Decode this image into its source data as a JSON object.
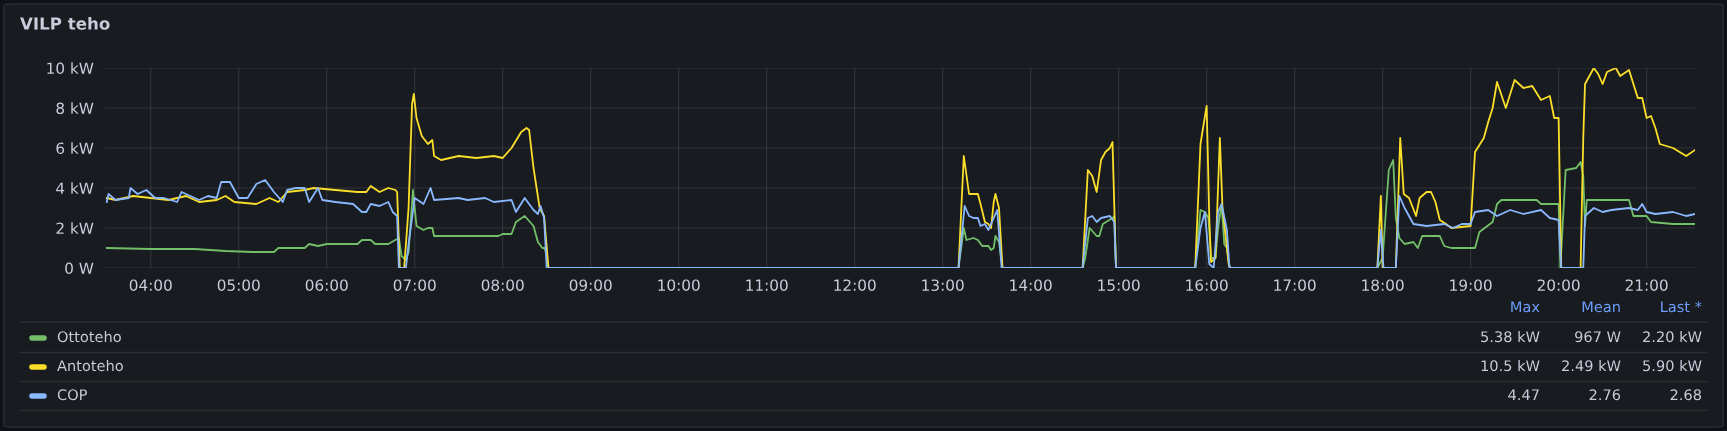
{
  "chart_data": {
    "type": "line",
    "title": "VILP teho",
    "xlim": [
      3.48,
      21.55
    ],
    "xticks": [
      {
        "value": 4,
        "label": "04:00"
      },
      {
        "value": 5,
        "label": "05:00"
      },
      {
        "value": 6,
        "label": "06:00"
      },
      {
        "value": 7,
        "label": "07:00"
      },
      {
        "value": 8,
        "label": "08:00"
      },
      {
        "value": 9,
        "label": "09:00"
      },
      {
        "value": 10,
        "label": "10:00"
      },
      {
        "value": 11,
        "label": "11:00"
      },
      {
        "value": 12,
        "label": "12:00"
      },
      {
        "value": 13,
        "label": "13:00"
      },
      {
        "value": 14,
        "label": "14:00"
      },
      {
        "value": 15,
        "label": "15:00"
      },
      {
        "value": 16,
        "label": "16:00"
      },
      {
        "value": 17,
        "label": "17:00"
      },
      {
        "value": 18,
        "label": "18:00"
      },
      {
        "value": 19,
        "label": "19:00"
      },
      {
        "value": 20,
        "label": "20:00"
      },
      {
        "value": 21,
        "label": "21:00"
      }
    ],
    "ylim": [
      0,
      10
    ],
    "yticks": [
      {
        "value": 0,
        "label": "0 W"
      },
      {
        "value": 2,
        "label": "2 kW"
      },
      {
        "value": 4,
        "label": "4 kW"
      },
      {
        "value": 6,
        "label": "6 kW"
      },
      {
        "value": 8,
        "label": "8 kW"
      },
      {
        "value": 10,
        "label": "10 kW"
      }
    ],
    "grid": true,
    "legend": "bottom",
    "marker": "none",
    "line_style": "solid",
    "annotations": [
      "Max",
      "Mean",
      "Last *",
      "5.38 kW",
      "967 W",
      "2.20 kW",
      "10.5 kW",
      "2.49 kW",
      "5.90 kW",
      "4.47",
      "2.76",
      "2.68"
    ],
    "series": [
      {
        "name": "Ottoteho",
        "color": "#73bf69",
        "x": [
          3.5,
          4.0,
          4.5,
          4.85,
          5.15,
          5.4,
          5.45,
          5.75,
          5.8,
          5.9,
          6.0,
          6.35,
          6.4,
          6.5,
          6.55,
          6.7,
          6.78,
          6.82,
          6.85,
          6.9,
          6.93,
          6.98,
          7.02,
          7.1,
          7.15,
          7.2,
          7.22,
          7.95,
          8.0,
          8.1,
          8.15,
          8.25,
          8.35,
          8.4,
          8.45,
          8.48,
          8.52,
          13.18,
          13.24,
          13.27,
          13.35,
          13.4,
          13.45,
          13.52,
          13.55,
          13.58,
          13.6,
          13.64,
          13.68,
          14.59,
          14.62,
          14.67,
          14.75,
          14.78,
          14.82,
          14.93,
          14.95,
          14.97,
          15.87,
          15.93,
          15.98,
          16.02,
          16.05,
          16.1,
          16.13,
          16.17,
          16.2,
          16.23,
          16.26,
          17.94,
          18.0,
          18.07,
          18.12,
          18.15,
          18.19,
          18.25,
          18.35,
          18.4,
          18.45,
          18.65,
          18.7,
          18.78,
          19.05,
          19.1,
          19.25,
          19.3,
          19.35,
          19.55,
          19.75,
          19.8,
          20.0,
          20.02,
          20.08,
          20.2,
          20.25,
          20.28,
          20.3,
          20.32,
          20.8,
          20.85,
          21.0,
          21.05,
          21.3,
          21.55
        ],
        "values": [
          1.0,
          0.95,
          0.95,
          0.85,
          0.8,
          0.8,
          1.0,
          1.0,
          1.2,
          1.1,
          1.2,
          1.2,
          1.4,
          1.4,
          1.2,
          1.2,
          1.4,
          1.5,
          0.6,
          0.4,
          0.8,
          3.9,
          2.1,
          1.9,
          2.0,
          2.0,
          1.6,
          1.6,
          1.7,
          1.7,
          2.3,
          2.6,
          2.1,
          1.3,
          1.0,
          1.0,
          0,
          0,
          2.0,
          1.4,
          1.5,
          1.4,
          1.1,
          1.1,
          0.9,
          1.0,
          1.6,
          1.3,
          0,
          0,
          0.5,
          2.0,
          1.6,
          1.6,
          2.2,
          2.5,
          2.6,
          0,
          0,
          2.9,
          2.8,
          2.5,
          0.5,
          0.5,
          2.0,
          3.2,
          1.2,
          1.0,
          0,
          0,
          0.5,
          4.9,
          5.4,
          2.5,
          1.5,
          1.2,
          1.3,
          1.0,
          1.6,
          1.6,
          1.1,
          1.0,
          1.0,
          1.8,
          2.3,
          3.2,
          3.4,
          3.4,
          3.4,
          3.2,
          3.2,
          0,
          4.9,
          5.0,
          5.3,
          4.6,
          2.1,
          3.4,
          3.4,
          2.6,
          2.6,
          2.3,
          2.2,
          2.2
        ]
      },
      {
        "name": "Antoteho",
        "color": "#fade2a",
        "x": [
          3.5,
          3.6,
          3.8,
          4.0,
          4.2,
          4.4,
          4.55,
          4.75,
          4.85,
          4.95,
          5.2,
          5.35,
          5.45,
          5.55,
          5.75,
          5.85,
          6.1,
          6.35,
          6.45,
          6.5,
          6.6,
          6.7,
          6.78,
          6.8,
          6.83,
          6.88,
          6.93,
          6.97,
          6.99,
          7.02,
          7.08,
          7.15,
          7.2,
          7.22,
          7.3,
          7.5,
          7.7,
          7.9,
          8.0,
          8.1,
          8.21,
          8.27,
          8.3,
          8.35,
          8.42,
          8.47,
          8.52,
          13.18,
          13.24,
          13.3,
          13.4,
          13.43,
          13.48,
          13.52,
          13.55,
          13.58,
          13.6,
          13.64,
          13.68,
          14.59,
          14.65,
          14.7,
          14.75,
          14.8,
          14.85,
          14.9,
          14.93,
          14.97,
          15.87,
          15.93,
          15.97,
          16.0,
          16.03,
          16.05,
          16.1,
          16.15,
          16.18,
          16.25,
          16.27,
          17.94,
          17.98,
          18.0,
          18.15,
          18.2,
          18.24,
          18.3,
          18.38,
          18.42,
          18.5,
          18.55,
          18.6,
          18.65,
          18.72,
          18.78,
          19.0,
          19.05,
          19.15,
          19.2,
          19.25,
          19.3,
          19.4,
          19.5,
          19.6,
          19.7,
          19.8,
          19.9,
          19.95,
          20.0,
          20.03,
          20.25,
          20.28,
          20.3,
          20.4,
          20.45,
          20.5,
          20.55,
          20.65,
          20.7,
          20.8,
          20.9,
          20.95,
          21.0,
          21.05,
          21.1,
          21.15,
          21.3,
          21.45,
          21.55
        ],
        "values": [
          3.5,
          3.4,
          3.6,
          3.5,
          3.4,
          3.6,
          3.3,
          3.4,
          3.6,
          3.3,
          3.2,
          3.5,
          3.3,
          3.8,
          3.9,
          4.0,
          3.9,
          3.8,
          3.8,
          4.1,
          3.8,
          4.0,
          3.9,
          3.8,
          0,
          0,
          3.0,
          8.2,
          8.7,
          7.5,
          6.6,
          6.2,
          6.4,
          5.6,
          5.4,
          5.6,
          5.5,
          5.6,
          5.5,
          6.0,
          6.8,
          7.0,
          6.9,
          5.0,
          3.0,
          2.6,
          0,
          0,
          5.6,
          3.7,
          3.7,
          3.2,
          2.3,
          2.2,
          2.0,
          3.3,
          3.7,
          3.0,
          0,
          0,
          4.9,
          4.6,
          3.8,
          5.4,
          5.8,
          6.0,
          6.3,
          0,
          0,
          6.2,
          7.3,
          8.1,
          2.5,
          0.3,
          0.5,
          6.5,
          3.0,
          0.2,
          0,
          0,
          3.6,
          0,
          0,
          6.5,
          3.7,
          3.5,
          2.6,
          3.5,
          3.8,
          3.8,
          3.3,
          2.4,
          2.2,
          2.0,
          2.1,
          5.8,
          6.5,
          7.3,
          8.0,
          9.3,
          8.0,
          9.4,
          9.0,
          9.1,
          8.4,
          8.6,
          7.5,
          7.5,
          0,
          0,
          6.5,
          9.2,
          10.0,
          9.7,
          9.2,
          9.8,
          10.0,
          9.6,
          9.9,
          8.5,
          8.5,
          7.5,
          7.6,
          7.0,
          6.2,
          6.0,
          5.6,
          5.9
        ]
      },
      {
        "name": "COP",
        "color": "#8ab8ff",
        "x": [
          3.5,
          3.52,
          3.6,
          3.75,
          3.77,
          3.85,
          3.95,
          4.05,
          4.15,
          4.3,
          4.35,
          4.45,
          4.55,
          4.65,
          4.75,
          4.8,
          4.9,
          5.0,
          5.1,
          5.2,
          5.3,
          5.4,
          5.5,
          5.55,
          5.65,
          5.75,
          5.8,
          5.9,
          5.95,
          6.1,
          6.3,
          6.35,
          6.4,
          6.45,
          6.5,
          6.6,
          6.7,
          6.75,
          6.8,
          6.82,
          6.9,
          6.93,
          7.0,
          7.1,
          7.18,
          7.22,
          7.5,
          7.6,
          7.8,
          7.9,
          8.1,
          8.15,
          8.25,
          8.3,
          8.35,
          8.4,
          8.43,
          8.47,
          8.5,
          13.18,
          13.25,
          13.3,
          13.35,
          13.4,
          13.43,
          13.48,
          13.52,
          13.58,
          13.62,
          13.67,
          14.59,
          14.65,
          14.7,
          14.75,
          14.8,
          14.9,
          14.95,
          14.97,
          15.87,
          15.93,
          15.98,
          16.03,
          16.08,
          16.13,
          16.17,
          16.23,
          16.26,
          17.94,
          17.98,
          18.01,
          18.15,
          18.19,
          18.25,
          18.35,
          18.5,
          18.7,
          18.8,
          18.9,
          19.0,
          19.05,
          19.2,
          19.3,
          19.45,
          19.6,
          19.8,
          19.9,
          20.0,
          20.03,
          20.28,
          20.3,
          20.4,
          20.5,
          20.6,
          20.8,
          20.9,
          20.95,
          21.0,
          21.1,
          21.3,
          21.45,
          21.55
        ],
        "values": [
          3.3,
          3.7,
          3.4,
          3.5,
          4.0,
          3.7,
          3.9,
          3.5,
          3.5,
          3.3,
          3.8,
          3.6,
          3.4,
          3.6,
          3.5,
          4.3,
          4.3,
          3.5,
          3.5,
          4.2,
          4.4,
          3.8,
          3.3,
          3.9,
          4.0,
          4.0,
          3.3,
          4.0,
          3.4,
          3.3,
          3.2,
          3.0,
          2.8,
          2.8,
          3.2,
          3.1,
          3.3,
          2.8,
          2.6,
          0,
          0,
          1.2,
          3.5,
          3.2,
          4.0,
          3.4,
          3.5,
          3.4,
          3.5,
          3.3,
          3.4,
          2.8,
          3.5,
          3.2,
          2.9,
          2.7,
          3.1,
          2.5,
          0,
          0,
          3.1,
          2.6,
          2.5,
          2.5,
          2.1,
          2.2,
          1.9,
          2.5,
          2.9,
          0,
          0,
          2.5,
          2.6,
          2.3,
          2.5,
          2.6,
          2.3,
          0,
          0,
          2.0,
          2.8,
          0.2,
          0,
          2.8,
          3.2,
          1.9,
          0,
          0,
          1.9,
          0,
          0,
          3.6,
          3.0,
          2.2,
          2.1,
          2.2,
          2.0,
          2.2,
          2.2,
          2.8,
          2.9,
          2.6,
          2.9,
          2.7,
          2.9,
          2.5,
          2.4,
          0,
          0,
          2.6,
          3.0,
          2.8,
          2.9,
          3.0,
          2.9,
          3.2,
          2.8,
          2.7,
          2.8,
          2.6,
          2.7
        ]
      }
    ]
  }
}
